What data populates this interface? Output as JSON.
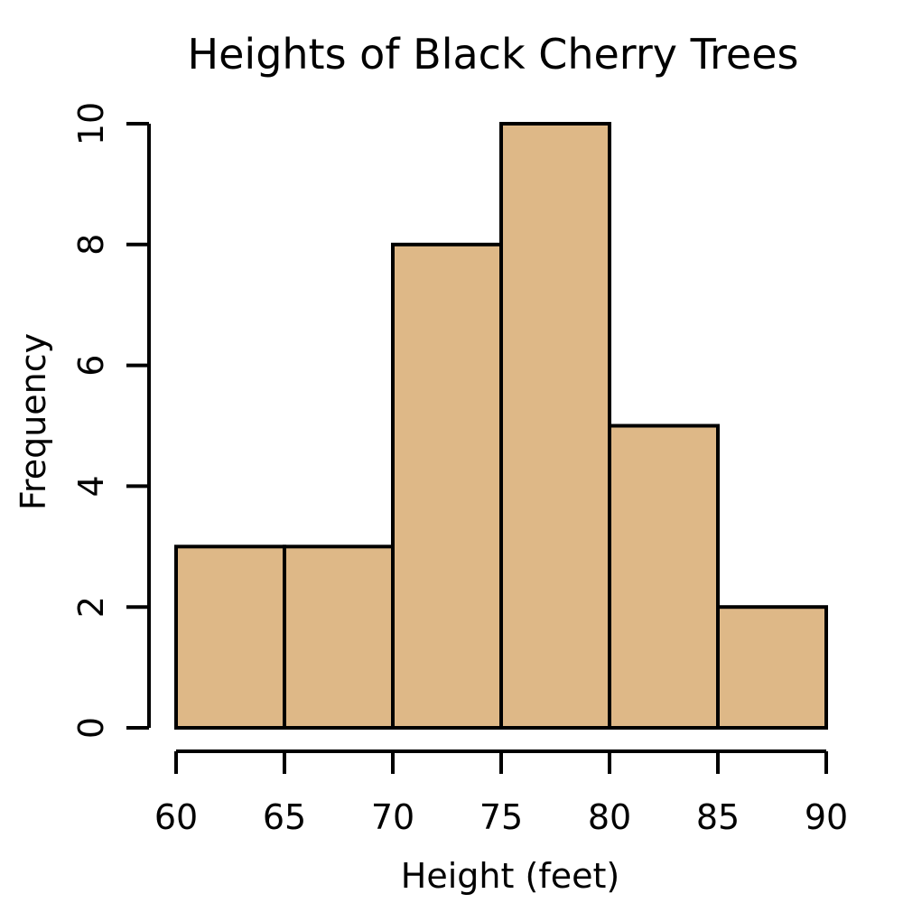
{
  "chart_data": {
    "type": "bar",
    "subtype": "histogram",
    "title": "Heights of Black Cherry Trees",
    "xlabel": "Height (feet)",
    "ylabel": "Frequency",
    "bins": [
      [
        60,
        65
      ],
      [
        65,
        70
      ],
      [
        70,
        75
      ],
      [
        75,
        80
      ],
      [
        80,
        85
      ],
      [
        85,
        90
      ]
    ],
    "values": [
      3,
      3,
      8,
      10,
      5,
      2
    ],
    "xlim": [
      60,
      90
    ],
    "ylim": [
      0,
      10
    ],
    "xticks": [
      "60",
      "65",
      "70",
      "75",
      "80",
      "85",
      "90"
    ],
    "yticks": [
      "0",
      "2",
      "4",
      "6",
      "8",
      "10"
    ],
    "grid": false,
    "bar_color": "#DEB887",
    "edge_color": "#000000"
  }
}
